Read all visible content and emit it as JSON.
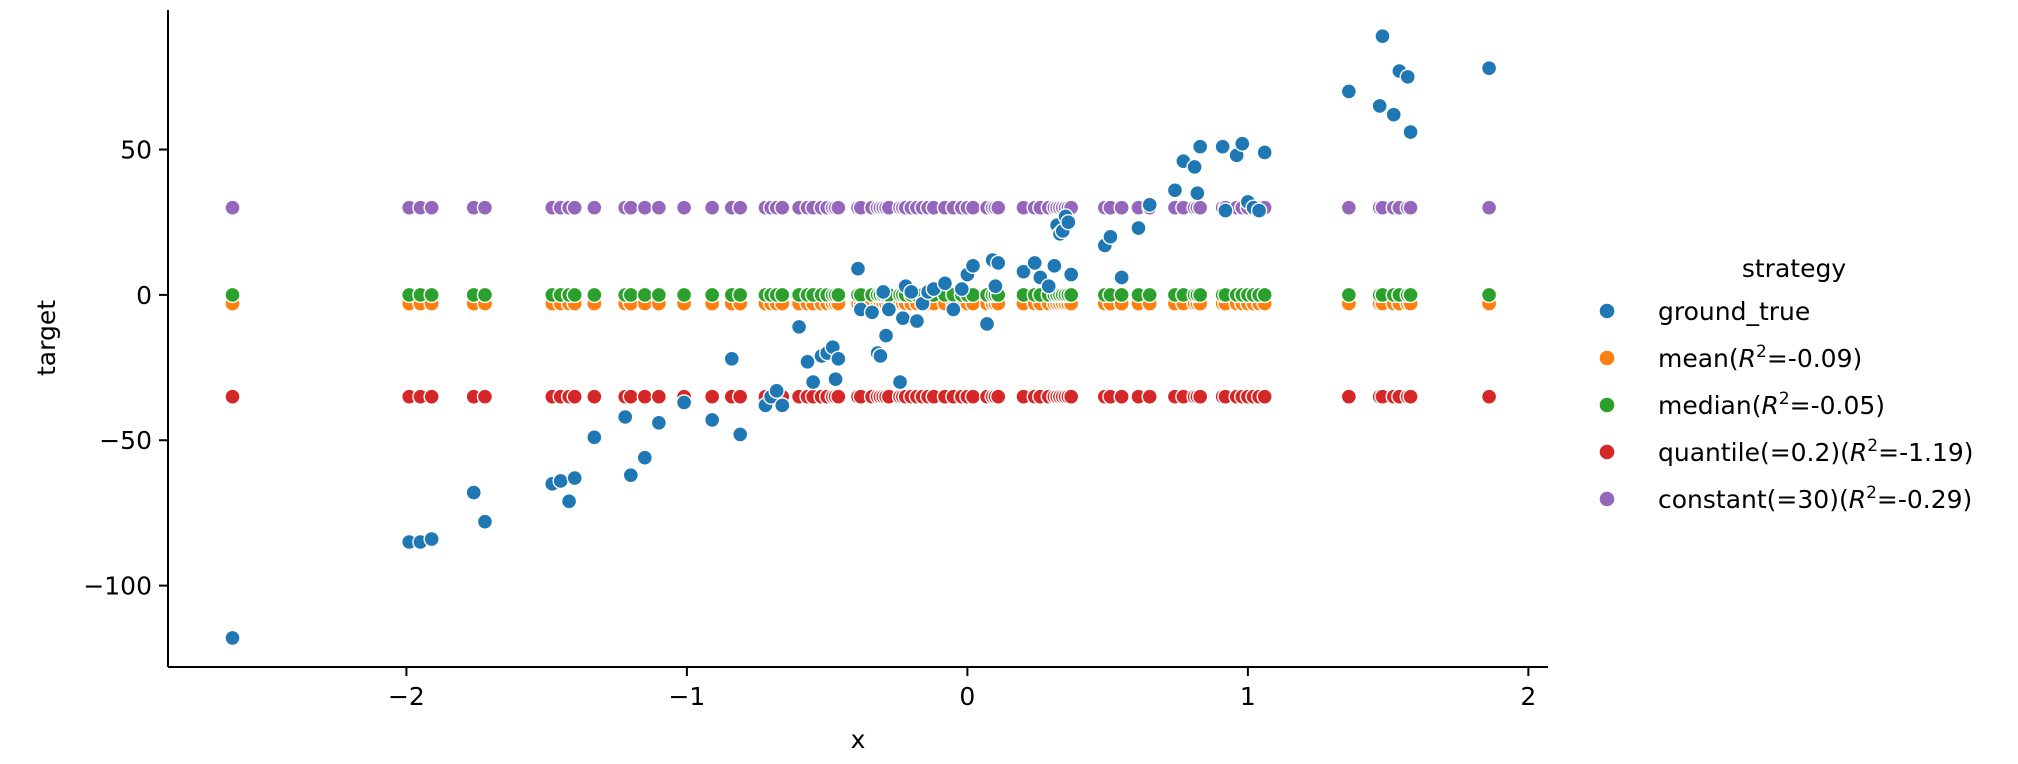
{
  "chart_data": {
    "type": "scatter",
    "title": "",
    "xlabel": "x",
    "ylabel": "target",
    "xlim": [
      -2.85,
      2.07
    ],
    "ylim": [
      -128,
      98
    ],
    "xticks": [
      -2,
      -1,
      0,
      1,
      2
    ],
    "xtick_labels": [
      "−2",
      "−1",
      "0",
      "1",
      "2"
    ],
    "yticks": [
      -100,
      -50,
      0,
      50
    ],
    "ytick_labels": [
      "−100",
      "−50",
      "0",
      "50"
    ],
    "grid": false,
    "legend": {
      "title": "strategy",
      "placement": "right",
      "entries": [
        {
          "name": "ground_true",
          "base": "ground_true",
          "r2": "",
          "color": "#1f77b4"
        },
        {
          "name": "mean(R²=-0.09)",
          "base": "mean(",
          "r2": "=-0.09)",
          "color": "#ff7f0e"
        },
        {
          "name": "median(R²=-0.05)",
          "base": "median(",
          "r2": "=-0.05)",
          "color": "#2ca02c"
        },
        {
          "name": "quantile(=0.2)(R²=-1.19)",
          "base": "quantile(=0.2)(",
          "r2": "=-1.19)",
          "color": "#d62728"
        },
        {
          "name": "constant(=30)(R²=-0.29)",
          "base": "constant(=30)(",
          "r2": "=-0.29)",
          "color": "#9467bd"
        }
      ]
    },
    "x": [
      -2.62,
      -1.99,
      -1.95,
      -1.91,
      -1.76,
      -1.72,
      -1.48,
      -1.45,
      -1.42,
      -1.4,
      -1.33,
      -1.22,
      -1.2,
      -1.15,
      -1.1,
      -1.01,
      -0.91,
      -0.84,
      -0.81,
      -0.72,
      -0.7,
      -0.68,
      -0.66,
      -0.6,
      -0.57,
      -0.55,
      -0.52,
      -0.5,
      -0.48,
      -0.47,
      -0.46,
      -0.39,
      -0.38,
      -0.34,
      -0.32,
      -0.31,
      -0.3,
      -0.29,
      -0.28,
      -0.24,
      -0.23,
      -0.22,
      -0.2,
      -0.18,
      -0.16,
      -0.14,
      -0.12,
      -0.08,
      -0.05,
      -0.02,
      0.0,
      0.02,
      0.07,
      0.09,
      0.1,
      0.11,
      0.2,
      0.24,
      0.26,
      0.29,
      0.31,
      0.32,
      0.33,
      0.34,
      0.35,
      0.36,
      0.37,
      0.49,
      0.51,
      0.55,
      0.61,
      0.65,
      0.74,
      0.77,
      0.81,
      0.82,
      0.83,
      0.91,
      0.92,
      0.96,
      0.98,
      1.0,
      1.02,
      1.04,
      1.06,
      1.36,
      1.47,
      1.48,
      1.52,
      1.54,
      1.57,
      1.58,
      1.86
    ],
    "series": [
      {
        "name": "ground_true",
        "color": "#1f77b4",
        "values": [
          -118,
          -85,
          -85,
          -84,
          -68,
          -78,
          -65,
          -64,
          -71,
          -63,
          -49,
          -42,
          -62,
          -56,
          -44,
          -37,
          -43,
          -22,
          -48,
          -38,
          -35,
          -33,
          -38,
          -11,
          -23,
          -30,
          -21,
          -20,
          -18,
          -29,
          -22,
          9,
          -5,
          -6,
          -20,
          -21,
          1,
          -14,
          -5,
          -30,
          -8,
          3,
          1,
          -9,
          -3,
          1,
          2,
          4,
          -5,
          2,
          7,
          10,
          -10,
          12,
          3,
          11,
          8,
          11,
          6,
          3,
          10,
          24,
          21,
          22,
          27,
          25,
          7,
          17,
          20,
          6,
          23,
          31,
          36,
          46,
          44,
          35,
          51,
          51,
          29,
          48,
          52,
          32,
          30,
          29,
          49,
          70,
          65,
          89,
          62,
          77,
          75,
          56,
          78
        ]
      },
      {
        "name": "mean(R²=-0.09)",
        "color": "#ff7f0e",
        "constant": -3
      },
      {
        "name": "median(R²=-0.05)",
        "color": "#2ca02c",
        "constant": 0
      },
      {
        "name": "quantile(=0.2)(R²=-1.19)",
        "color": "#d62728",
        "constant": -35
      },
      {
        "name": "constant(=30)(R²=-0.29)",
        "color": "#9467bd",
        "constant": 30
      }
    ]
  }
}
